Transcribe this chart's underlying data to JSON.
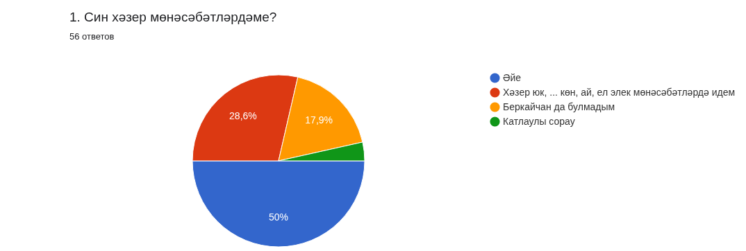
{
  "chart_data": {
    "type": "pie",
    "title": "1. Син хәзер мөнәсәбәтләрдәме?",
    "subtitle": "56 ответов",
    "categories": [
      "Әйе",
      "Хәзер юк, ... көн, ай, ел элек мөнәсәбәтләрдә идем",
      "Беркайчан да булмадым",
      "Катлаулы сорау"
    ],
    "values": [
      50,
      28.6,
      17.9,
      3.5
    ],
    "value_labels": [
      "50%",
      "28,6%",
      "17,9%",
      null
    ],
    "colors": [
      "#3366cc",
      "#dc3912",
      "#ff9900",
      "#109618"
    ],
    "legend": "right"
  }
}
